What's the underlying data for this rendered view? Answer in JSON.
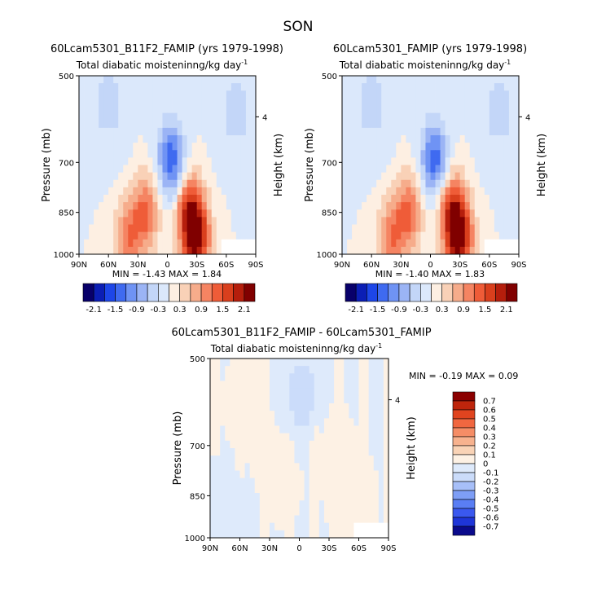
{
  "page_title": "SON",
  "colorbar_shared": {
    "colors": [
      "#08006a",
      "#0b1eb5",
      "#1d46e8",
      "#3f6af0",
      "#6f93f4",
      "#9bb4f5",
      "#c3d6f8",
      "#dbe8fb",
      "#fdefe2",
      "#f9d1b7",
      "#f6ac8b",
      "#f58462",
      "#ef5c38",
      "#d93f1d",
      "#b51e0c",
      "#800000"
    ],
    "labels": [
      "-2.1",
      "-1.5",
      "-0.9",
      "-0.3",
      "0.3",
      "0.9",
      "1.5",
      "2.1"
    ]
  },
  "colorbar_diff": {
    "colors": [
      "#0a0a8c",
      "#1e35d8",
      "#3a58ef",
      "#5a7ef4",
      "#7e9ef6",
      "#a7bff8",
      "#cbdcfa",
      "#deeafb",
      "#fdf1e4",
      "#f9d3b6",
      "#f7b28e",
      "#f58d66",
      "#f16740",
      "#e0441f",
      "#be250c",
      "#8b0000"
    ],
    "labels": [
      "0.7",
      "0.6",
      "0.5",
      "0.4",
      "0.3",
      "0.2",
      "0.1",
      "0",
      "-0.1",
      "-0.2",
      "-0.3",
      "-0.4",
      "-0.5",
      "-0.6",
      "-0.7"
    ]
  },
  "chart_data": [
    {
      "type": "heatmap",
      "title": "60Lcam5301_B11F2_FAMIP (yrs 1979-1998)",
      "subtitle": "Total diabatic moisteninng/kg day",
      "subtitle_exp": "-1",
      "ylabel": "Pressure (mb)",
      "ylabel_right": "Height (km)",
      "x_ticks": [
        "90N",
        "60N",
        "30N",
        "0",
        "30S",
        "60S",
        "90S"
      ],
      "x_range": [
        90,
        -90
      ],
      "y_ticks": [
        "500",
        "700",
        "850",
        "1000"
      ],
      "y_range": [
        500,
        1000
      ],
      "right_ticks": [
        "4"
      ],
      "stats": {
        "min_label": "MIN =",
        "min": "-1.43",
        "max_label": "MAX =",
        "max": "1.84"
      },
      "level_step": 0.3,
      "features": [
        {
          "lat": -4,
          "p": 740,
          "value": -1.43
        },
        {
          "lat": 22,
          "p": 880,
          "value": 1.2
        },
        {
          "lat": -22,
          "p": 880,
          "value": 1.6
        },
        {
          "lat": -30,
          "p": 960,
          "value": 1.84
        },
        {
          "lat": 40,
          "p": 960,
          "value": 1.1
        },
        {
          "lat": 60,
          "p": 580,
          "value": -0.4
        },
        {
          "lat": -70,
          "p": 600,
          "value": -0.4
        }
      ]
    },
    {
      "type": "heatmap",
      "title": "60Lcam5301_FAMIP (yrs 1979-1998)",
      "subtitle": "Total diabatic moisteninng/kg day",
      "subtitle_exp": "-1",
      "ylabel": "Pressure (mb)",
      "ylabel_right": "Height (km)",
      "x_ticks": [
        "90N",
        "60N",
        "30N",
        "0",
        "30S",
        "60S",
        "90S"
      ],
      "x_range": [
        90,
        -90
      ],
      "y_ticks": [
        "500",
        "700",
        "850",
        "1000"
      ],
      "y_range": [
        500,
        1000
      ],
      "right_ticks": [
        "4"
      ],
      "stats": {
        "min_label": "MIN =",
        "min": "-1.40",
        "max_label": "MAX =",
        "max": "1.83"
      },
      "level_step": 0.3,
      "features": [
        {
          "lat": -4,
          "p": 740,
          "value": -1.4
        },
        {
          "lat": 22,
          "p": 880,
          "value": 1.2
        },
        {
          "lat": -22,
          "p": 880,
          "value": 1.6
        },
        {
          "lat": -30,
          "p": 960,
          "value": 1.83
        },
        {
          "lat": 40,
          "p": 960,
          "value": 1.1
        },
        {
          "lat": 60,
          "p": 580,
          "value": -0.4
        },
        {
          "lat": -70,
          "p": 600,
          "value": -0.4
        }
      ]
    },
    {
      "type": "heatmap",
      "title": "60Lcam5301_B11F2_FAMIP - 60Lcam5301_FAMIP",
      "subtitle": "Total diabatic moisteninng/kg day",
      "subtitle_exp": "-1",
      "ylabel": "Pressure (mb)",
      "ylabel_right": "Height (km)",
      "x_ticks": [
        "90N",
        "60N",
        "30N",
        "0",
        "30S",
        "60S",
        "90S"
      ],
      "x_range": [
        90,
        -90
      ],
      "y_ticks": [
        "500",
        "700",
        "850",
        "1000"
      ],
      "y_range": [
        500,
        1000
      ],
      "right_ticks": [
        "4"
      ],
      "stats": {
        "min_label": "MIN =",
        "min": "-0.19",
        "max_label": "MAX =",
        "max": "0.09"
      },
      "level_step": 0.1,
      "features": [
        {
          "lat": 55,
          "p": 650,
          "value": 0.09
        },
        {
          "lat": 20,
          "p": 800,
          "value": 0.09
        },
        {
          "lat": -25,
          "p": 700,
          "value": 0.09
        },
        {
          "lat": -55,
          "p": 900,
          "value": 0.09
        },
        {
          "lat": 75,
          "p": 900,
          "value": -0.09
        },
        {
          "lat": -5,
          "p": 620,
          "value": -0.19
        }
      ]
    }
  ]
}
